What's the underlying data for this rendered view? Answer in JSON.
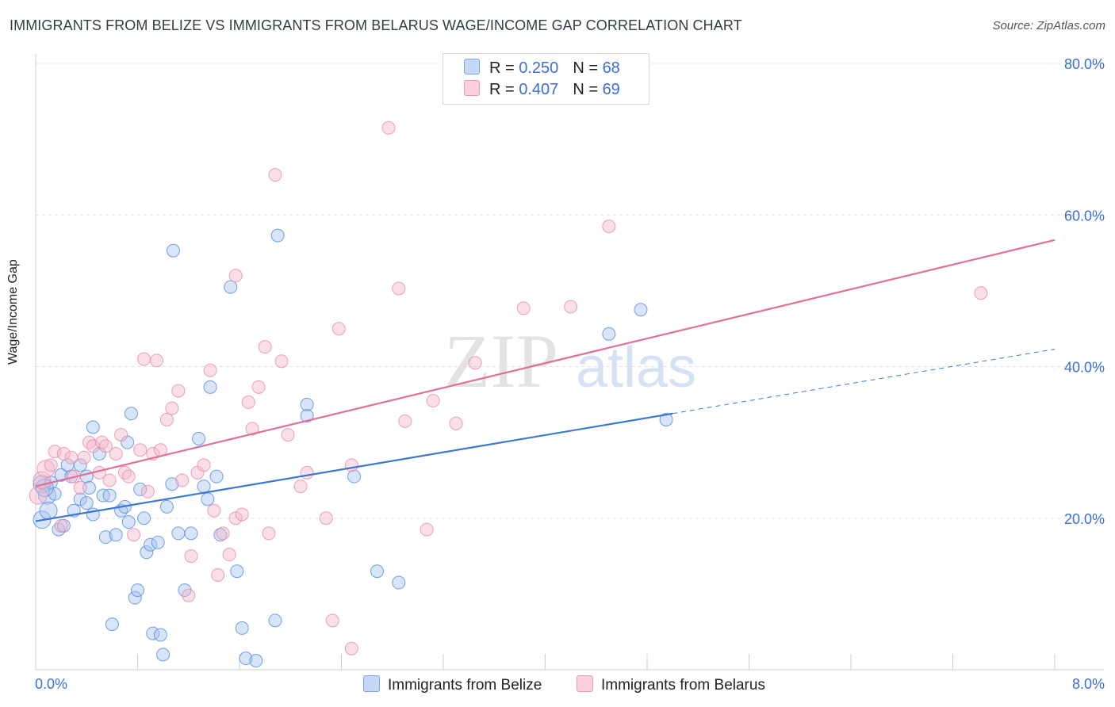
{
  "header": {
    "title": "IMMIGRANTS FROM BELIZE VS IMMIGRANTS FROM BELARUS WAGE/INCOME GAP CORRELATION CHART",
    "source": "Source: ZipAtlas.com"
  },
  "watermark": {
    "zip": "ZIP",
    "atlas": "atlas"
  },
  "stats_legend": {
    "rows": [
      {
        "r_label": "R = ",
        "r_value": "0.250",
        "n_label": "N = ",
        "n_value": "68",
        "color": "#a9c4ef"
      },
      {
        "r_label": "R = ",
        "r_value": "0.407",
        "n_label": "N = ",
        "n_value": "69",
        "color": "#f5b8cb"
      }
    ]
  },
  "bottom_legend": {
    "items": [
      {
        "label": "Immigrants from Belize",
        "color": "#a9c4ef"
      },
      {
        "label": "Immigrants from Belarus",
        "color": "#f5b8cb"
      }
    ]
  },
  "chart_data": {
    "type": "scatter",
    "title": "IMMIGRANTS FROM BELIZE VS IMMIGRANTS FROM BELARUS WAGE/INCOME GAP CORRELATION CHART",
    "xlabel": "",
    "ylabel": "Wage/Income Gap",
    "xlim": [
      0,
      8
    ],
    "ylim": [
      0,
      80
    ],
    "x_tick_labels": [
      "0.0%",
      "8.0%"
    ],
    "y_tick_labels": [
      "20.0%",
      "40.0%",
      "60.0%",
      "80.0%"
    ],
    "y_ticks": [
      20,
      40,
      60,
      80
    ],
    "grid": true,
    "legend_position": "top-center",
    "series": [
      {
        "name": "Immigrants from Belize",
        "color": "#5b8fe0",
        "fill": "#a9c4ef",
        "trend_color": "#3a78d4",
        "trend": {
          "x0": 0.0,
          "y0": 19.6,
          "x1": 5.0,
          "y1": 33.8,
          "dash_to_x": 8.0,
          "dash_to_y": 42.3
        },
        "points": [
          [
            0.05,
            24.5
          ],
          [
            0.05,
            19.8
          ],
          [
            0.09,
            23.0
          ],
          [
            0.12,
            24.7
          ],
          [
            0.1,
            21.0
          ],
          [
            0.18,
            18.5
          ],
          [
            0.2,
            25.7
          ],
          [
            0.22,
            19.0
          ],
          [
            0.28,
            25.5
          ],
          [
            0.3,
            21.0
          ],
          [
            0.35,
            27.0
          ],
          [
            0.35,
            22.5
          ],
          [
            0.4,
            25.5
          ],
          [
            0.42,
            24.0
          ],
          [
            0.45,
            32.0
          ],
          [
            0.45,
            20.5
          ],
          [
            0.5,
            28.5
          ],
          [
            0.53,
            23.0
          ],
          [
            0.55,
            17.5
          ],
          [
            0.58,
            23.0
          ],
          [
            0.6,
            6.0
          ],
          [
            0.63,
            17.8
          ],
          [
            0.67,
            21.0
          ],
          [
            0.7,
            21.5
          ],
          [
            0.72,
            30.0
          ],
          [
            0.73,
            19.5
          ],
          [
            0.75,
            33.8
          ],
          [
            0.78,
            9.5
          ],
          [
            0.8,
            10.5
          ],
          [
            0.82,
            23.8
          ],
          [
            0.85,
            20.0
          ],
          [
            0.87,
            15.5
          ],
          [
            0.9,
            16.5
          ],
          [
            0.92,
            4.8
          ],
          [
            0.96,
            16.8
          ],
          [
            0.98,
            4.6
          ],
          [
            1.0,
            2.0
          ],
          [
            1.03,
            21.5
          ],
          [
            1.07,
            24.5
          ],
          [
            1.08,
            55.3
          ],
          [
            1.12,
            18.0
          ],
          [
            1.17,
            10.5
          ],
          [
            1.22,
            18.0
          ],
          [
            1.28,
            30.5
          ],
          [
            1.32,
            24.2
          ],
          [
            1.35,
            22.5
          ],
          [
            1.37,
            37.3
          ],
          [
            1.42,
            25.5
          ],
          [
            1.45,
            17.8
          ],
          [
            1.53,
            50.5
          ],
          [
            1.58,
            13.0
          ],
          [
            1.62,
            5.5
          ],
          [
            1.65,
            1.5
          ],
          [
            1.73,
            1.2
          ],
          [
            1.88,
            6.5
          ],
          [
            1.9,
            57.3
          ],
          [
            2.13,
            35.0
          ],
          [
            2.13,
            33.5
          ],
          [
            2.5,
            25.5
          ],
          [
            2.68,
            13.0
          ],
          [
            2.85,
            11.5
          ],
          [
            4.5,
            44.3
          ],
          [
            4.75,
            47.5
          ],
          [
            4.95,
            33.0
          ],
          [
            0.15,
            23.2
          ],
          [
            0.25,
            27.0
          ],
          [
            0.07,
            24.0
          ],
          [
            0.4,
            22.0
          ]
        ]
      },
      {
        "name": "Immigrants from Belarus",
        "color": "#e890ab",
        "fill": "#f5b8cb",
        "trend_color": "#e07096",
        "trend": {
          "x0": 0.0,
          "y0": 24.2,
          "x1": 8.0,
          "y1": 56.7
        },
        "points": [
          [
            0.02,
            23.0
          ],
          [
            0.05,
            25.0
          ],
          [
            0.08,
            26.5
          ],
          [
            0.12,
            27.0
          ],
          [
            0.15,
            28.8
          ],
          [
            0.2,
            19.0
          ],
          [
            0.22,
            28.5
          ],
          [
            0.28,
            28.0
          ],
          [
            0.3,
            25.5
          ],
          [
            0.35,
            24.0
          ],
          [
            0.38,
            28.0
          ],
          [
            0.42,
            30.0
          ],
          [
            0.45,
            29.5
          ],
          [
            0.5,
            26.0
          ],
          [
            0.52,
            30.0
          ],
          [
            0.55,
            29.5
          ],
          [
            0.58,
            25.0
          ],
          [
            0.63,
            28.5
          ],
          [
            0.67,
            31.0
          ],
          [
            0.7,
            26.0
          ],
          [
            0.73,
            25.5
          ],
          [
            0.77,
            17.8
          ],
          [
            0.82,
            29.0
          ],
          [
            0.85,
            41.0
          ],
          [
            0.88,
            23.5
          ],
          [
            0.92,
            28.5
          ],
          [
            0.95,
            40.8
          ],
          [
            0.98,
            29.0
          ],
          [
            1.03,
            33.0
          ],
          [
            1.07,
            34.5
          ],
          [
            1.12,
            36.8
          ],
          [
            1.15,
            25.0
          ],
          [
            1.2,
            9.8
          ],
          [
            1.22,
            15.0
          ],
          [
            1.27,
            26.0
          ],
          [
            1.32,
            27.0
          ],
          [
            1.37,
            39.5
          ],
          [
            1.4,
            21.0
          ],
          [
            1.43,
            12.5
          ],
          [
            1.47,
            18.0
          ],
          [
            1.52,
            15.2
          ],
          [
            1.57,
            52.0
          ],
          [
            1.57,
            20.0
          ],
          [
            1.62,
            20.5
          ],
          [
            1.67,
            35.3
          ],
          [
            1.7,
            31.8
          ],
          [
            1.75,
            37.3
          ],
          [
            1.8,
            42.6
          ],
          [
            1.83,
            18.0
          ],
          [
            1.88,
            65.3
          ],
          [
            1.93,
            40.7
          ],
          [
            1.98,
            31.0
          ],
          [
            2.08,
            24.2
          ],
          [
            2.13,
            26.0
          ],
          [
            2.28,
            20.0
          ],
          [
            2.33,
            6.5
          ],
          [
            2.38,
            45.0
          ],
          [
            2.48,
            27.0
          ],
          [
            2.48,
            2.8
          ],
          [
            2.77,
            71.5
          ],
          [
            2.85,
            50.3
          ],
          [
            2.9,
            32.8
          ],
          [
            3.07,
            18.5
          ],
          [
            3.12,
            35.5
          ],
          [
            3.3,
            32.5
          ],
          [
            3.45,
            40.5
          ],
          [
            3.83,
            47.7
          ],
          [
            4.2,
            47.9
          ],
          [
            4.5,
            58.5
          ]
        ],
        "extra_points": [
          [
            7.42,
            49.7
          ]
        ]
      }
    ]
  }
}
